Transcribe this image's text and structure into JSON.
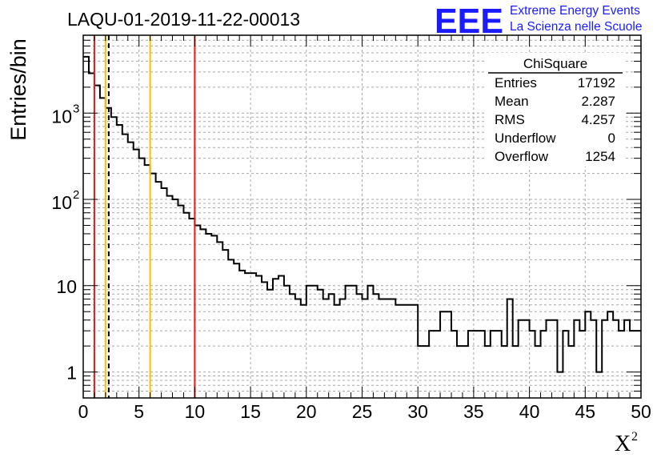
{
  "chart_data": {
    "type": "histogram",
    "title": "LAQU-01-2019-11-22-00013",
    "xlabel": "X",
    "xlabel_superscript": "2",
    "ylabel": "Entries/bin",
    "xlim": [
      0,
      50
    ],
    "ylim": [
      0.5,
      8000
    ],
    "yscale": "log",
    "grid": true,
    "bin_width": 0.5,
    "x_ticks": [
      "0",
      "5",
      "10",
      "15",
      "20",
      "25",
      "30",
      "35",
      "40",
      "45",
      "50"
    ],
    "y_ticks": [
      {
        "value": 1,
        "base": "1",
        "exp": ""
      },
      {
        "value": 10,
        "base": "10",
        "exp": ""
      },
      {
        "value": 100,
        "base": "10",
        "exp": "2"
      },
      {
        "value": 1000,
        "base": "10",
        "exp": "3"
      }
    ],
    "values": [
      4500,
      2900,
      2100,
      1500,
      1150,
      900,
      730,
      570,
      460,
      380,
      300,
      250,
      200,
      160,
      135,
      110,
      100,
      85,
      70,
      60,
      50,
      45,
      40,
      38,
      32,
      26,
      20,
      18,
      15,
      14,
      14,
      13,
      11,
      9,
      12,
      13,
      10,
      8,
      7,
      6,
      10,
      10,
      9,
      7,
      8,
      6,
      7,
      10,
      10,
      8,
      7,
      10,
      8,
      7,
      7,
      7,
      6,
      6,
      6,
      6,
      2,
      2,
      3,
      3,
      5,
      5,
      3,
      2,
      2,
      3,
      3,
      3,
      2,
      3,
      3,
      2,
      7,
      2,
      4,
      4,
      3,
      2,
      3,
      4,
      4,
      1,
      3,
      2,
      4,
      3,
      5,
      4,
      1,
      4,
      5,
      4,
      3,
      4,
      3,
      3
    ],
    "vertical_lines": [
      {
        "x": 1,
        "color": "#e31b1b",
        "style": "solid"
      },
      {
        "x": 2.0,
        "color": "#f5c400",
        "style": "solid"
      },
      {
        "x": 2.287,
        "color": "#000000",
        "style": "dashed"
      },
      {
        "x": 6,
        "color": "#f5c400",
        "style": "solid"
      },
      {
        "x": 10,
        "color": "#e31b1b",
        "style": "solid"
      }
    ]
  },
  "stats_box": {
    "name": "ChiSquare",
    "rows": [
      {
        "label": "Entries",
        "value": "17192"
      },
      {
        "label": "Mean",
        "value": "2.287"
      },
      {
        "label": "RMS",
        "value": "4.257"
      },
      {
        "label": "Underflow",
        "value": "0"
      },
      {
        "label": "Overflow",
        "value": "1254"
      }
    ]
  },
  "logo": {
    "mark": "EEE",
    "line1": "Extreme Energy Events",
    "line2": "La Scienza nelle Scuole",
    "color": "#1b1bff"
  }
}
